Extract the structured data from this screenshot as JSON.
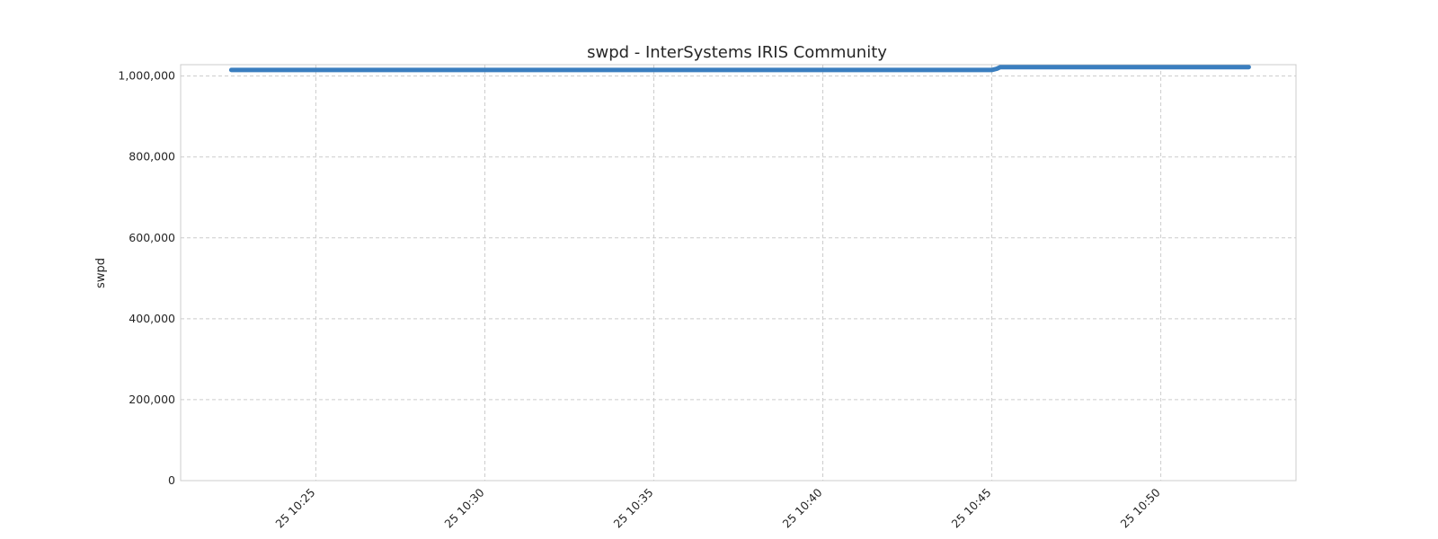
{
  "chart_data": {
    "type": "line",
    "title": "swpd - InterSystems IRIS Community",
    "xlabel": "",
    "ylabel": "swpd",
    "x_unit": "minutes",
    "xlim": [
      21.0,
      54.0
    ],
    "ylim": [
      0,
      1028000
    ],
    "y_ticks": [
      0,
      200000,
      400000,
      600000,
      800000,
      1000000
    ],
    "y_tick_labels": [
      "0",
      "200,000",
      "400,000",
      "600,000",
      "800,000",
      "1,000,000"
    ],
    "x_ticks": [
      25,
      30,
      35,
      40,
      45,
      50
    ],
    "x_tick_labels": [
      "25 10:25",
      "25 10:30",
      "25 10:35",
      "25 10:40",
      "25 10:45",
      "25 10:50"
    ],
    "grid": true,
    "series": [
      {
        "name": "swpd",
        "color": "#3a7ebf",
        "x": [
          22.5,
          30.0,
          35.0,
          40.0,
          45.0,
          45.15,
          45.25,
          50.0,
          52.6
        ],
        "values": [
          1015000,
          1015000,
          1015000,
          1015000,
          1015000,
          1018000,
          1022000,
          1022000,
          1022000
        ]
      }
    ]
  }
}
